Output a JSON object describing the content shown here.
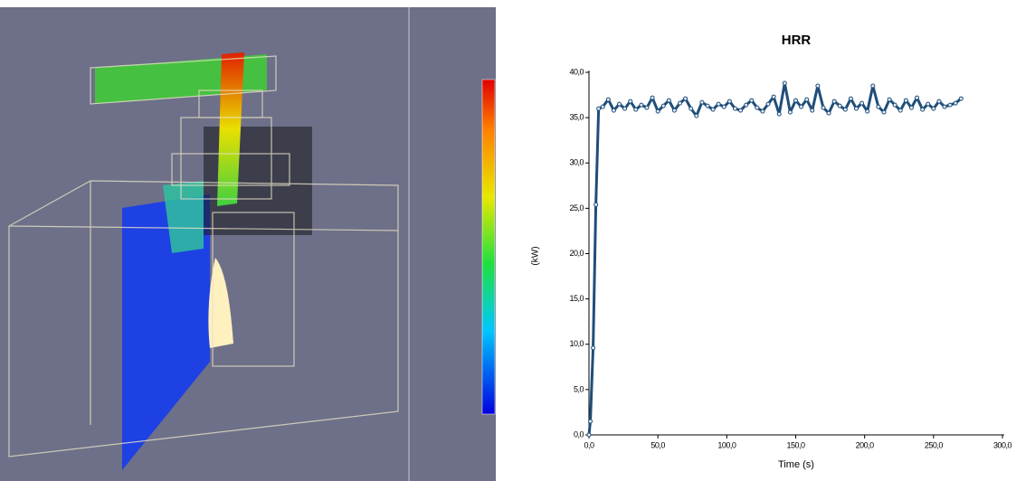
{
  "chart_data": {
    "type": "line",
    "title": "HRR",
    "x_label": "Time (s)",
    "y_label": "(kW)",
    "x": [
      0,
      1,
      3,
      5,
      7,
      10,
      14,
      18,
      22,
      26,
      30,
      34,
      38,
      42,
      46,
      50,
      54,
      58,
      62,
      66,
      70,
      74,
      78,
      82,
      86,
      90,
      94,
      98,
      102,
      106,
      110,
      114,
      118,
      122,
      126,
      130,
      134,
      138,
      142,
      146,
      150,
      154,
      158,
      162,
      166,
      170,
      174,
      178,
      182,
      186,
      190,
      194,
      198,
      202,
      206,
      210,
      214,
      218,
      222,
      226,
      230,
      234,
      238,
      242,
      246,
      250,
      254,
      258,
      262,
      266,
      270
    ],
    "series": [
      {
        "color": "#1f4e79",
        "values": [
          0,
          1.5,
          9.6,
          25.4,
          36.0,
          36.2,
          37.0,
          35.8,
          36.5,
          36.0,
          36.8,
          35.9,
          36.4,
          36.1,
          37.2,
          35.7,
          36.3,
          36.9,
          35.8,
          36.6,
          37.1,
          36.0,
          35.2,
          36.7,
          36.3,
          35.9,
          36.5,
          36.2,
          36.8,
          36.0,
          35.8,
          36.4,
          36.9,
          36.1,
          35.7,
          36.5,
          37.3,
          35.4,
          38.8,
          35.6,
          36.9,
          36.2,
          37.0,
          35.8,
          38.5,
          36.1,
          35.5,
          36.8,
          36.3,
          35.9,
          37.1,
          36.0,
          36.6,
          35.7,
          38.5,
          36.2,
          35.6,
          37.0,
          36.4,
          35.8,
          36.9,
          36.1,
          37.2,
          35.9,
          36.5,
          36.0,
          36.8,
          36.2,
          36.4,
          36.6,
          37.1
        ]
      }
    ],
    "xlim": [
      0,
      300
    ],
    "xticks": [
      {
        "value": 0,
        "label": "0,0"
      },
      {
        "value": 50,
        "label": "50,0"
      },
      {
        "value": 100,
        "label": "100,0"
      },
      {
        "value": 150,
        "label": "150,0"
      },
      {
        "value": 200,
        "label": "200,0"
      },
      {
        "value": 250,
        "label": "250,0"
      },
      {
        "value": 300,
        "label": "300,0"
      }
    ],
    "ylim": [
      0,
      40
    ],
    "yticks": [
      {
        "value": 0,
        "label": "0,0"
      },
      {
        "value": 5,
        "label": "5,0"
      },
      {
        "value": 10,
        "label": "10,0"
      },
      {
        "value": 15,
        "label": "15,0"
      },
      {
        "value": 20,
        "label": "20,0"
      },
      {
        "value": 25,
        "label": "25,0"
      },
      {
        "value": 30,
        "label": "30,0"
      },
      {
        "value": 35,
        "label": "35,0"
      },
      {
        "value": 40,
        "label": "40,0"
      }
    ],
    "grid": false
  }
}
